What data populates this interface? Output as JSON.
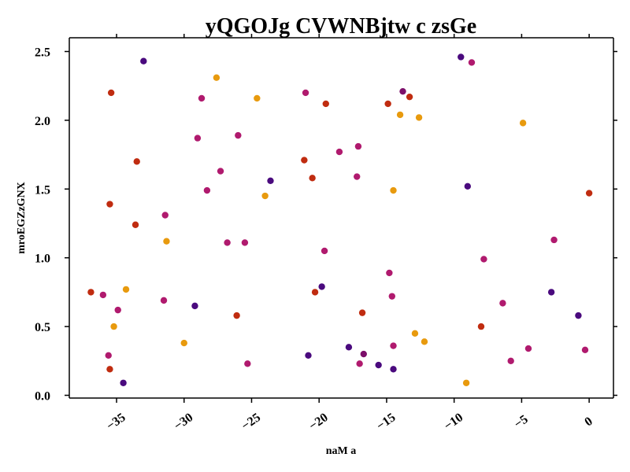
{
  "chart_data": {
    "type": "scatter",
    "title": "yQGOJg CVWNBjtw c zsGe",
    "xlabel": "naM a",
    "ylabel": "mroEGZzGNX",
    "xlim": [
      -38.5,
      1.8
    ],
    "ylim": [
      -0.02,
      2.6
    ],
    "xticks": [
      -35,
      -30,
      -25,
      -20,
      -15,
      -10,
      -5,
      0
    ],
    "xtick_labels": [
      "−35",
      "−30",
      "−25",
      "−20",
      "−15",
      "−10",
      "−5",
      "0"
    ],
    "yticks": [
      0.0,
      0.5,
      1.0,
      1.5,
      2.0,
      2.5
    ],
    "ytick_labels": [
      "0.0",
      "0.5",
      "1.0",
      "1.5",
      "2.0",
      "2.5"
    ],
    "grid": false,
    "palette": {
      "indigo": "#4a0a7e",
      "plum": "#7c0f6a",
      "magenta": "#b01a6e",
      "red": "#c02c10",
      "orange": "#e89a0e"
    },
    "points": [
      {
        "x": -33.0,
        "y": 2.43,
        "c": "indigo"
      },
      {
        "x": -35.4,
        "y": 2.2,
        "c": "red"
      },
      {
        "x": -27.6,
        "y": 2.31,
        "c": "orange"
      },
      {
        "x": -28.7,
        "y": 2.16,
        "c": "magenta"
      },
      {
        "x": -24.6,
        "y": 2.16,
        "c": "orange"
      },
      {
        "x": -21.0,
        "y": 2.2,
        "c": "magenta"
      },
      {
        "x": -19.5,
        "y": 2.12,
        "c": "red"
      },
      {
        "x": -14.9,
        "y": 2.12,
        "c": "red"
      },
      {
        "x": -13.8,
        "y": 2.21,
        "c": "plum"
      },
      {
        "x": -13.3,
        "y": 2.17,
        "c": "red"
      },
      {
        "x": -9.5,
        "y": 2.46,
        "c": "indigo"
      },
      {
        "x": -8.7,
        "y": 2.42,
        "c": "magenta"
      },
      {
        "x": -14.0,
        "y": 2.04,
        "c": "orange"
      },
      {
        "x": -12.6,
        "y": 2.02,
        "c": "orange"
      },
      {
        "x": -4.9,
        "y": 1.98,
        "c": "orange"
      },
      {
        "x": -29.0,
        "y": 1.87,
        "c": "magenta"
      },
      {
        "x": -26.0,
        "y": 1.89,
        "c": "magenta"
      },
      {
        "x": -18.5,
        "y": 1.77,
        "c": "magenta"
      },
      {
        "x": -17.1,
        "y": 1.81,
        "c": "magenta"
      },
      {
        "x": -33.5,
        "y": 1.7,
        "c": "red"
      },
      {
        "x": -21.1,
        "y": 1.71,
        "c": "red"
      },
      {
        "x": -27.3,
        "y": 1.63,
        "c": "magenta"
      },
      {
        "x": -20.5,
        "y": 1.58,
        "c": "red"
      },
      {
        "x": -17.2,
        "y": 1.59,
        "c": "magenta"
      },
      {
        "x": -23.6,
        "y": 1.56,
        "c": "indigo"
      },
      {
        "x": -28.3,
        "y": 1.49,
        "c": "magenta"
      },
      {
        "x": -24.0,
        "y": 1.45,
        "c": "orange"
      },
      {
        "x": -14.5,
        "y": 1.49,
        "c": "orange"
      },
      {
        "x": -9.0,
        "y": 1.52,
        "c": "indigo"
      },
      {
        "x": 0.0,
        "y": 1.47,
        "c": "red"
      },
      {
        "x": -35.5,
        "y": 1.39,
        "c": "red"
      },
      {
        "x": -31.4,
        "y": 1.31,
        "c": "magenta"
      },
      {
        "x": -33.6,
        "y": 1.24,
        "c": "red"
      },
      {
        "x": -31.3,
        "y": 1.12,
        "c": "orange"
      },
      {
        "x": -26.8,
        "y": 1.11,
        "c": "magenta"
      },
      {
        "x": -25.5,
        "y": 1.11,
        "c": "magenta"
      },
      {
        "x": -2.6,
        "y": 1.13,
        "c": "magenta"
      },
      {
        "x": -19.6,
        "y": 1.05,
        "c": "magenta"
      },
      {
        "x": -7.8,
        "y": 0.99,
        "c": "magenta"
      },
      {
        "x": -14.8,
        "y": 0.89,
        "c": "magenta"
      },
      {
        "x": -19.8,
        "y": 0.79,
        "c": "indigo"
      },
      {
        "x": -36.9,
        "y": 0.75,
        "c": "red"
      },
      {
        "x": -36.0,
        "y": 0.73,
        "c": "magenta"
      },
      {
        "x": -34.3,
        "y": 0.77,
        "c": "orange"
      },
      {
        "x": -20.3,
        "y": 0.75,
        "c": "red"
      },
      {
        "x": -14.6,
        "y": 0.72,
        "c": "magenta"
      },
      {
        "x": -2.8,
        "y": 0.75,
        "c": "indigo"
      },
      {
        "x": -31.5,
        "y": 0.69,
        "c": "magenta"
      },
      {
        "x": -6.4,
        "y": 0.67,
        "c": "magenta"
      },
      {
        "x": -29.2,
        "y": 0.65,
        "c": "indigo"
      },
      {
        "x": -34.9,
        "y": 0.62,
        "c": "magenta"
      },
      {
        "x": -26.1,
        "y": 0.58,
        "c": "red"
      },
      {
        "x": -16.8,
        "y": 0.6,
        "c": "red"
      },
      {
        "x": -0.8,
        "y": 0.58,
        "c": "indigo"
      },
      {
        "x": -35.2,
        "y": 0.5,
        "c": "orange"
      },
      {
        "x": -8.0,
        "y": 0.5,
        "c": "red"
      },
      {
        "x": -12.9,
        "y": 0.45,
        "c": "orange"
      },
      {
        "x": -30.0,
        "y": 0.38,
        "c": "orange"
      },
      {
        "x": -12.2,
        "y": 0.39,
        "c": "orange"
      },
      {
        "x": -17.8,
        "y": 0.35,
        "c": "indigo"
      },
      {
        "x": -14.5,
        "y": 0.36,
        "c": "magenta"
      },
      {
        "x": -4.5,
        "y": 0.34,
        "c": "magenta"
      },
      {
        "x": -0.3,
        "y": 0.33,
        "c": "magenta"
      },
      {
        "x": -35.6,
        "y": 0.29,
        "c": "magenta"
      },
      {
        "x": -20.8,
        "y": 0.29,
        "c": "indigo"
      },
      {
        "x": -16.7,
        "y": 0.3,
        "c": "plum"
      },
      {
        "x": -5.8,
        "y": 0.25,
        "c": "magenta"
      },
      {
        "x": -25.3,
        "y": 0.23,
        "c": "magenta"
      },
      {
        "x": -17.0,
        "y": 0.23,
        "c": "magenta"
      },
      {
        "x": -15.6,
        "y": 0.22,
        "c": "indigo"
      },
      {
        "x": -35.5,
        "y": 0.19,
        "c": "red"
      },
      {
        "x": -14.5,
        "y": 0.19,
        "c": "indigo"
      },
      {
        "x": -34.5,
        "y": 0.09,
        "c": "indigo"
      },
      {
        "x": -9.1,
        "y": 0.09,
        "c": "orange"
      }
    ]
  }
}
